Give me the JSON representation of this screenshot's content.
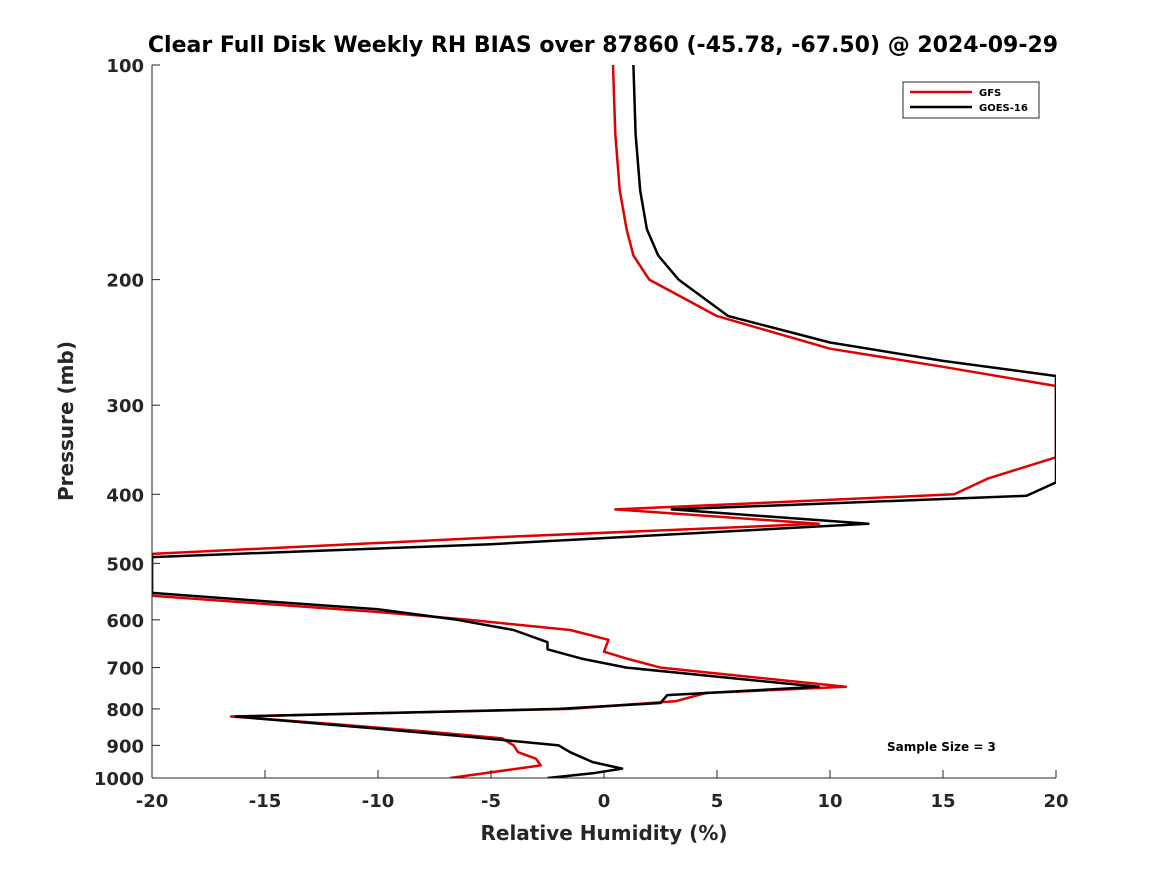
{
  "chart_data": {
    "type": "line",
    "title": "Clear Full Disk Weekly RH BIAS over 87860 (-45.78, -67.50) @ 2024-09-29",
    "xlabel": "Relative Humidity (%)",
    "ylabel": "Pressure (mb)",
    "xlim": [
      -20,
      20
    ],
    "ylim": [
      1000,
      100
    ],
    "y_scale": "log",
    "x_ticks": [
      -20,
      -15,
      -10,
      -5,
      0,
      5,
      10,
      15,
      20
    ],
    "y_ticks": [
      100,
      200,
      300,
      400,
      500,
      600,
      700,
      800,
      900,
      1000
    ],
    "grid": false,
    "legend": {
      "placement": "top-right",
      "entries": [
        "GFS",
        "GOES-16"
      ]
    },
    "annotation": "Sample Size = 3",
    "series": [
      {
        "name": "GFS",
        "color": "#e00000",
        "points": [
          [
            0.4,
            100
          ],
          [
            0.5,
            125
          ],
          [
            0.7,
            150
          ],
          [
            1.0,
            170
          ],
          [
            1.3,
            185
          ],
          [
            2.0,
            200
          ],
          [
            5.0,
            225
          ],
          [
            10.0,
            250
          ],
          [
            15.0,
            265
          ],
          [
            20.0,
            282
          ],
          [
            20.0,
            355
          ],
          [
            17.0,
            380
          ],
          [
            15.5,
            400
          ],
          [
            0.5,
            420
          ],
          [
            9.5,
            440
          ],
          [
            -5.0,
            460
          ],
          [
            -20.0,
            485
          ],
          [
            -20.0,
            555
          ],
          [
            -15.0,
            570
          ],
          [
            -10.0,
            585
          ],
          [
            -6.0,
            600
          ],
          [
            -1.5,
            620
          ],
          [
            0.2,
            640
          ],
          [
            0.0,
            665
          ],
          [
            1.0,
            680
          ],
          [
            2.5,
            700
          ],
          [
            10.7,
            745
          ],
          [
            4.5,
            760
          ],
          [
            3.2,
            780
          ],
          [
            -1.5,
            800
          ],
          [
            -16.5,
            820
          ],
          [
            -12.0,
            840
          ],
          [
            -8.0,
            860
          ],
          [
            -4.5,
            880
          ],
          [
            -4.0,
            900
          ],
          [
            -3.8,
            920
          ],
          [
            -3.0,
            940
          ],
          [
            -2.8,
            960
          ],
          [
            -6.8,
            1000
          ]
        ]
      },
      {
        "name": "GOES-16",
        "color": "#000000",
        "points": [
          [
            1.3,
            100
          ],
          [
            1.4,
            125
          ],
          [
            1.6,
            150
          ],
          [
            1.9,
            170
          ],
          [
            2.4,
            185
          ],
          [
            3.3,
            200
          ],
          [
            5.5,
            225
          ],
          [
            10.0,
            245
          ],
          [
            15.0,
            260
          ],
          [
            20.0,
            273
          ],
          [
            20.0,
            385
          ],
          [
            18.7,
            402
          ],
          [
            3.0,
            420
          ],
          [
            11.7,
            440
          ],
          [
            -5.0,
            470
          ],
          [
            -20.0,
            490
          ],
          [
            -20.0,
            550
          ],
          [
            -15.0,
            565
          ],
          [
            -10.0,
            580
          ],
          [
            -6.5,
            600
          ],
          [
            -4.0,
            620
          ],
          [
            -2.5,
            645
          ],
          [
            -2.5,
            660
          ],
          [
            -1.0,
            680
          ],
          [
            1.0,
            700
          ],
          [
            9.5,
            745
          ],
          [
            2.8,
            765
          ],
          [
            2.5,
            785
          ],
          [
            -2.0,
            800
          ],
          [
            -16.3,
            820
          ],
          [
            -10.5,
            850
          ],
          [
            -6.0,
            875
          ],
          [
            -2.0,
            900
          ],
          [
            -1.5,
            920
          ],
          [
            -0.5,
            950
          ],
          [
            0.8,
            970
          ],
          [
            -0.5,
            985
          ],
          [
            -2.5,
            1000
          ]
        ]
      }
    ]
  }
}
